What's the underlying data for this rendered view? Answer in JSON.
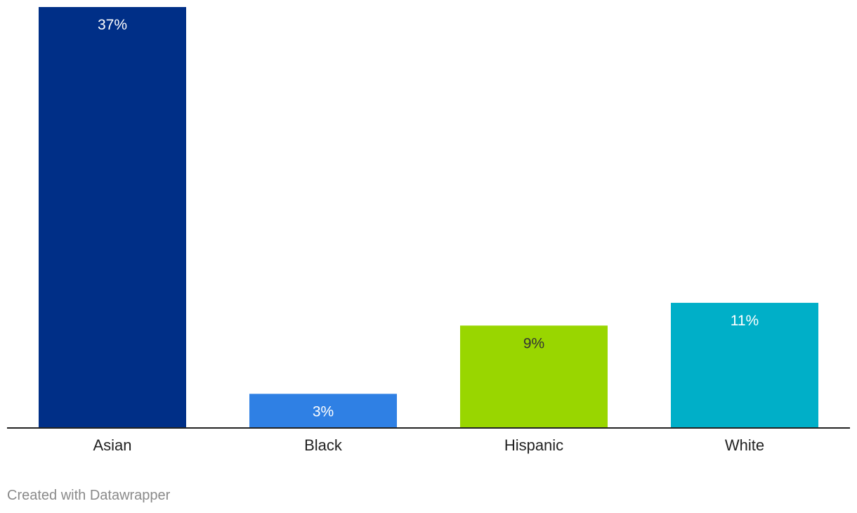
{
  "chart_data": {
    "type": "bar",
    "categories": [
      "Asian",
      "Black",
      "Hispanic",
      "White"
    ],
    "values": [
      37,
      3,
      9,
      11
    ],
    "value_labels": [
      "37%",
      "3%",
      "9%",
      "11%"
    ],
    "colors": [
      "#002f87",
      "#2f80e4",
      "#99d600",
      "#00afc8"
    ],
    "label_colors": [
      "#ffffff",
      "#ffffff",
      "#333333",
      "#ffffff"
    ],
    "ylim": [
      0,
      37
    ],
    "grid": false,
    "legend": "none",
    "title": "",
    "xlabel": "",
    "ylabel": ""
  },
  "footer": {
    "credit": "Created with Datawrapper"
  }
}
